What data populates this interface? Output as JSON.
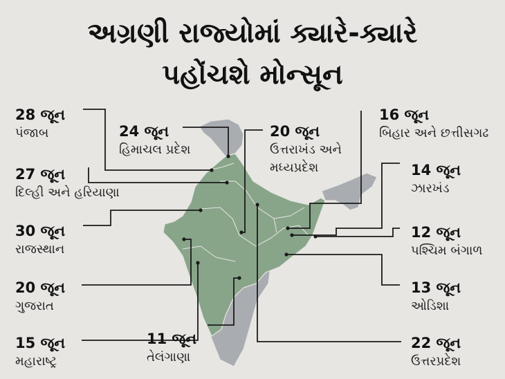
{
  "title_line1": "અગ્રણી રાજ્યોમાં ક્યારે-ક્યારે",
  "title_line2": "પહોંચશે મોન્સૂન",
  "colors": {
    "background": "#e7e6e3",
    "highlighted_states": "#88a58a",
    "other_states": "#a9adb1",
    "leader_line": "#1a1a1a"
  },
  "labels": {
    "punjab": {
      "date": "28 જૂન",
      "state": "પંજાબ"
    },
    "himachal": {
      "date": "24 જૂન",
      "state": "હિમાચલ પ્રદેશ"
    },
    "uttarakhand": {
      "date": "20 જૂન",
      "state": "ઉત્તરાખંડ અને",
      "state2": "મધ્યપ્રદેશ"
    },
    "bihar": {
      "date": "16 જૂન",
      "state": "બિહાર અને છત્તીસગઢ"
    },
    "delhi": {
      "date": "27 જૂન",
      "state": "દિલ્હી અને હરિયાણા"
    },
    "jharkhand": {
      "date": "14 જૂન",
      "state": "ઝારખંડ"
    },
    "rajasthan": {
      "date": "30 જૂન",
      "state": "રાજસ્થાન"
    },
    "westbengal": {
      "date": "12 જૂન",
      "state": "પશ્ચિમ બંગાળ"
    },
    "gujarat": {
      "date": "20 જૂન",
      "state": "ગુજરાત"
    },
    "odisha": {
      "date": "13 જૂન",
      "state": "ઓડિશા"
    },
    "maharashtra": {
      "date": "15 જૂન",
      "state": "મહારાષ્ટ્ર"
    },
    "telangana": {
      "date": "11 જૂન",
      "state": "તેલંગાણા"
    },
    "uttarpradesh": {
      "date": "22 જૂન",
      "state": "ઉત્તરપ્રદેશ"
    }
  }
}
